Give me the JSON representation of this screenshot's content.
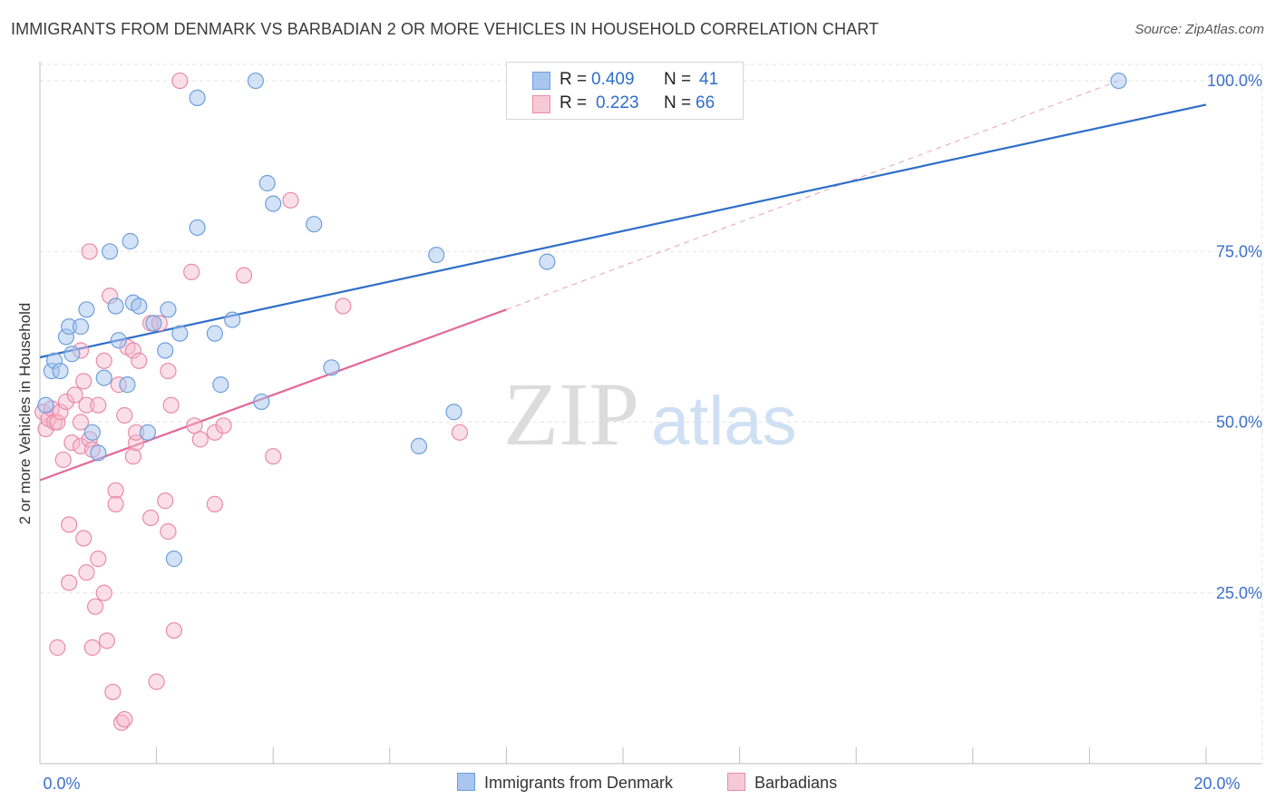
{
  "title": "IMMIGRANTS FROM DENMARK VS BARBADIAN 2 OR MORE VEHICLES IN HOUSEHOLD CORRELATION CHART",
  "source": "Source: ZipAtlas.com",
  "watermark": {
    "zip": "ZIP",
    "atlas": "atlas"
  },
  "legend": {
    "series1": {
      "r_label": "R =",
      "r_value": "0.409",
      "n_label": "N =",
      "n_value": "41"
    },
    "series2": {
      "r_label": "R =",
      "r_value": "0.223",
      "n_label": "N =",
      "n_value": "66"
    }
  },
  "bottom_legend": {
    "series1": "Immigrants from Denmark",
    "series2": "Barbadians"
  },
  "colors": {
    "blue_fill": "#a8c6ef",
    "blue_stroke": "#6f9fdc",
    "blue_line": "#2f6ec9",
    "pink_fill": "#f6b9cc",
    "pink_stroke": "#e98aa9",
    "pink_line": "#e26896",
    "grid": "#e3e3e3",
    "tick_label": "#3b6fcb"
  },
  "chart_data": {
    "type": "scatter",
    "title": "IMMIGRANTS FROM DENMARK VS BARBADIAN 2 OR MORE VEHICLES IN HOUSEHOLD CORRELATION CHART",
    "xlabel": "",
    "ylabel": "2 or more Vehicles in Household",
    "xlim": [
      0,
      20
    ],
    "ylim": [
      0,
      102
    ],
    "x_tick_labels": [
      {
        "value": 0,
        "label": "0.0%"
      },
      {
        "value": 20,
        "label": "20.0%"
      }
    ],
    "y_tick_labels": [
      {
        "value": 25,
        "label": "25.0%"
      },
      {
        "value": 50,
        "label": "50.0%"
      },
      {
        "value": 75,
        "label": "75.0%"
      },
      {
        "value": 100,
        "label": "100.0%"
      }
    ],
    "series": [
      {
        "name": "Immigrants from Denmark",
        "r": 0.409,
        "n": 41,
        "trend": {
          "x": [
            0,
            20
          ],
          "y": [
            59.5,
            96.5
          ],
          "style": "solid"
        },
        "points": [
          [
            0.1,
            52.5
          ],
          [
            0.2,
            57.5
          ],
          [
            0.25,
            59
          ],
          [
            0.35,
            57.5
          ],
          [
            0.45,
            62.5
          ],
          [
            0.5,
            64
          ],
          [
            0.55,
            60
          ],
          [
            0.7,
            64
          ],
          [
            0.8,
            66.5
          ],
          [
            0.9,
            48.5
          ],
          [
            1.0,
            45.5
          ],
          [
            1.1,
            56.5
          ],
          [
            1.2,
            75
          ],
          [
            1.3,
            67
          ],
          [
            1.35,
            62
          ],
          [
            1.5,
            55.5
          ],
          [
            1.55,
            76.5
          ],
          [
            1.6,
            67.5
          ],
          [
            1.7,
            67
          ],
          [
            1.85,
            48.5
          ],
          [
            1.95,
            64.5
          ],
          [
            2.15,
            60.5
          ],
          [
            2.2,
            66.5
          ],
          [
            2.3,
            30
          ],
          [
            2.4,
            63
          ],
          [
            2.7,
            78.5
          ],
          [
            2.7,
            97.5
          ],
          [
            3.0,
            63
          ],
          [
            3.1,
            55.5
          ],
          [
            3.3,
            65
          ],
          [
            3.7,
            100
          ],
          [
            3.8,
            53
          ],
          [
            3.9,
            85
          ],
          [
            4.0,
            82
          ],
          [
            4.7,
            79
          ],
          [
            5.0,
            58
          ],
          [
            6.5,
            46.5
          ],
          [
            6.8,
            74.5
          ],
          [
            7.1,
            51.5
          ],
          [
            8.7,
            73.5
          ],
          [
            18.5,
            100
          ]
        ]
      },
      {
        "name": "Barbadians",
        "r": 0.223,
        "n": 66,
        "trend": {
          "x": [
            0,
            8.0
          ],
          "y": [
            41.5,
            66.5
          ],
          "style": "solid",
          "extension": {
            "x": [
              8.0,
              18.5
            ],
            "y": [
              66.5,
              100
            ],
            "style": "dashed"
          }
        },
        "points": [
          [
            0.05,
            51.5
          ],
          [
            0.1,
            49
          ],
          [
            0.15,
            50.5
          ],
          [
            0.2,
            52
          ],
          [
            0.25,
            50
          ],
          [
            0.3,
            50
          ],
          [
            0.35,
            51.5
          ],
          [
            0.4,
            44.5
          ],
          [
            0.45,
            53
          ],
          [
            0.5,
            26.5
          ],
          [
            0.5,
            35
          ],
          [
            0.55,
            47
          ],
          [
            0.6,
            54
          ],
          [
            0.7,
            46.5
          ],
          [
            0.7,
            60.5
          ],
          [
            0.75,
            56
          ],
          [
            0.8,
            52.5
          ],
          [
            0.75,
            33
          ],
          [
            0.8,
            28
          ],
          [
            0.85,
            47.5
          ],
          [
            0.85,
            75
          ],
          [
            0.9,
            17
          ],
          [
            0.9,
            46
          ],
          [
            0.95,
            23
          ],
          [
            1.0,
            52.5
          ],
          [
            1.0,
            30
          ],
          [
            1.1,
            25
          ],
          [
            1.1,
            59
          ],
          [
            1.15,
            18
          ],
          [
            1.2,
            68.5
          ],
          [
            1.25,
            10.5
          ],
          [
            1.3,
            40
          ],
          [
            1.3,
            38
          ],
          [
            1.35,
            55.5
          ],
          [
            1.4,
            6
          ],
          [
            1.45,
            6.5
          ],
          [
            1.45,
            51
          ],
          [
            1.5,
            61
          ],
          [
            1.6,
            60.5
          ],
          [
            1.6,
            45
          ],
          [
            1.65,
            47
          ],
          [
            1.65,
            48.5
          ],
          [
            1.7,
            59
          ],
          [
            1.9,
            64.5
          ],
          [
            1.9,
            36
          ],
          [
            2.0,
            12
          ],
          [
            2.05,
            64.5
          ],
          [
            2.15,
            38.5
          ],
          [
            2.2,
            57.5
          ],
          [
            2.2,
            34
          ],
          [
            2.25,
            52.5
          ],
          [
            2.3,
            19.5
          ],
          [
            2.4,
            100
          ],
          [
            2.6,
            72
          ],
          [
            2.65,
            49.5
          ],
          [
            2.75,
            47.5
          ],
          [
            3.0,
            38
          ],
          [
            3.0,
            48.5
          ],
          [
            3.15,
            49.5
          ],
          [
            3.5,
            71.5
          ],
          [
            4.0,
            45
          ],
          [
            4.3,
            82.5
          ],
          [
            5.2,
            67
          ],
          [
            7.2,
            48.5
          ],
          [
            0.3,
            17
          ],
          [
            0.7,
            50
          ]
        ]
      }
    ]
  }
}
